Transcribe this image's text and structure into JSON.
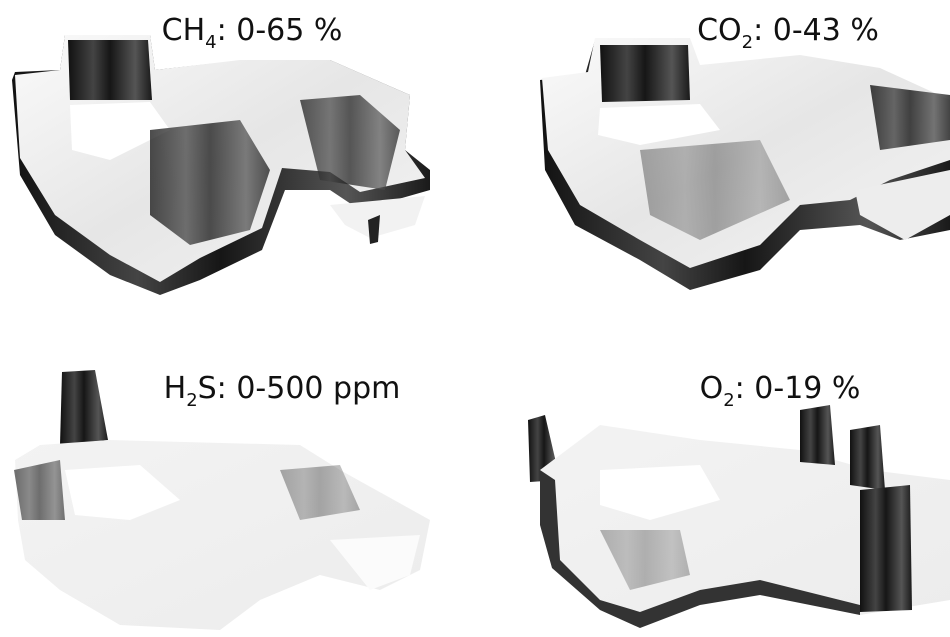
{
  "panels": [
    {
      "label": {
        "main": "CH",
        "sub": "4",
        "rest": ": 0-65 %"
      }
    },
    {
      "label": {
        "main": "CO",
        "sub": "2",
        "rest": ": 0-43 %"
      }
    },
    {
      "label": {
        "main": "H",
        "sub": "2",
        "rest": "S: 0-500 ppm"
      }
    },
    {
      "label": {
        "main": "O",
        "sub": "2",
        "rest": ": 0-19 %"
      }
    }
  ]
}
